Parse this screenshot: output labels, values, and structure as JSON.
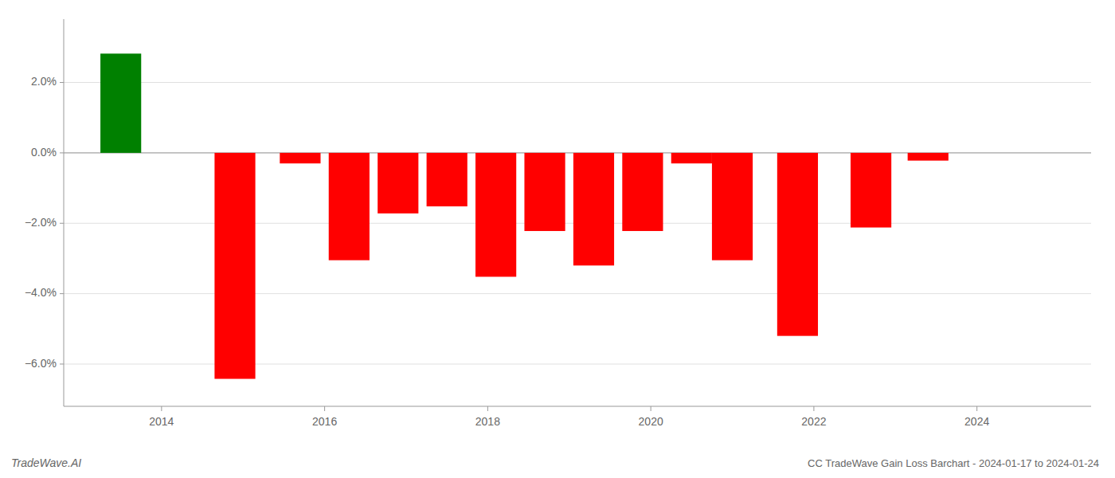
{
  "chart_data": {
    "type": "bar",
    "title": "CC TradeWave Gain Loss Barchart - 2024-01-17 to 2024-01-24",
    "annotations": [
      "TradeWave.AI"
    ],
    "x": [
      2013.5,
      2014.9,
      2015.7,
      2016.3,
      2016.9,
      2017.5,
      2018.1,
      2018.7,
      2019.3,
      2019.9,
      2020.5,
      2021.0,
      2021.8,
      2022.7,
      2023.4
    ],
    "values": [
      2.82,
      -6.42,
      -0.3,
      -3.05,
      -1.72,
      -1.52,
      -3.52,
      -2.22,
      -3.2,
      -2.22,
      -0.3,
      -3.05,
      -5.2,
      -2.12,
      -0.22
    ],
    "colors": [
      "#008000",
      "#ff0000",
      "#ff0000",
      "#ff0000",
      "#ff0000",
      "#ff0000",
      "#ff0000",
      "#ff0000",
      "#ff0000",
      "#ff0000",
      "#ff0000",
      "#ff0000",
      "#ff0000",
      "#ff0000",
      "#ff0000"
    ],
    "xlim": [
      2012.8,
      2025.4
    ],
    "xticks": [
      2014,
      2016,
      2018,
      2020,
      2022,
      2024
    ],
    "ylim": [
      -7.2,
      3.8
    ],
    "yticks": [
      {
        "value": -6.0,
        "label": "−6.0%"
      },
      {
        "value": -4.0,
        "label": "−4.0%"
      },
      {
        "value": -2.0,
        "label": "−2.0%"
      },
      {
        "value": 0.0,
        "label": "0.0%"
      },
      {
        "value": 2.0,
        "label": "2.0%"
      }
    ],
    "grid": true
  }
}
